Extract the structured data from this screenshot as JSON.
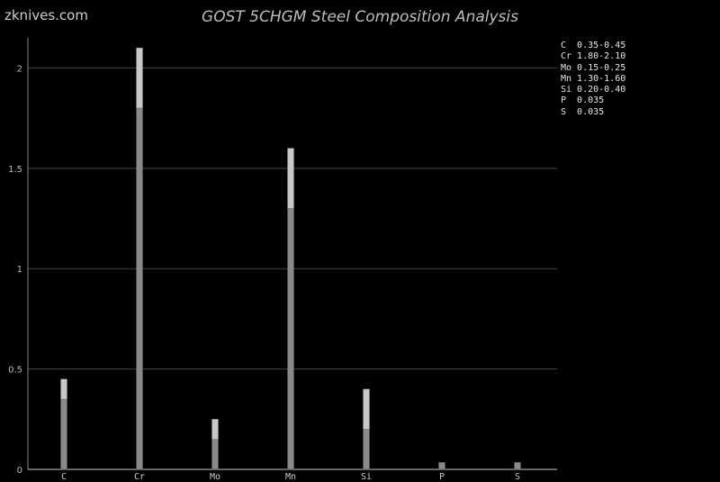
{
  "watermark": "zknives.com",
  "chart_data": {
    "type": "bar",
    "stacked_range": true,
    "title": "GOST 5CHGM Steel Composition Analysis",
    "xlabel": "",
    "ylabel": "",
    "categories": [
      "C",
      "Cr",
      "Mo",
      "Mn",
      "Si",
      "P",
      "S"
    ],
    "series": [
      {
        "values_min": [
          0.35,
          1.8,
          0.15,
          1.3,
          0.2,
          0.035,
          0.035
        ]
      },
      {
        "values_max": [
          0.45,
          2.1,
          0.25,
          1.6,
          0.4,
          0.035,
          0.035
        ]
      }
    ],
    "ylim": [
      0,
      2.15
    ],
    "yticks": [
      0,
      0.5,
      1,
      1.5,
      2
    ],
    "ytick_labels": [
      "0",
      "0.5",
      "1",
      "1.5",
      "2"
    ],
    "grid": true,
    "legend_position": "right",
    "legend": [
      "C  0.35-0.45",
      "Cr 1.80-2.10",
      "Mo 0.15-0.25",
      "Mn 1.30-1.60",
      "Si 0.20-0.40",
      "P  0.035",
      "S  0.035"
    ],
    "colors": {
      "background": "#000000",
      "bar_min": "#8a8a8a",
      "bar_range": "#c8c8c8",
      "grid": "#444444",
      "axis": "#888888"
    }
  }
}
